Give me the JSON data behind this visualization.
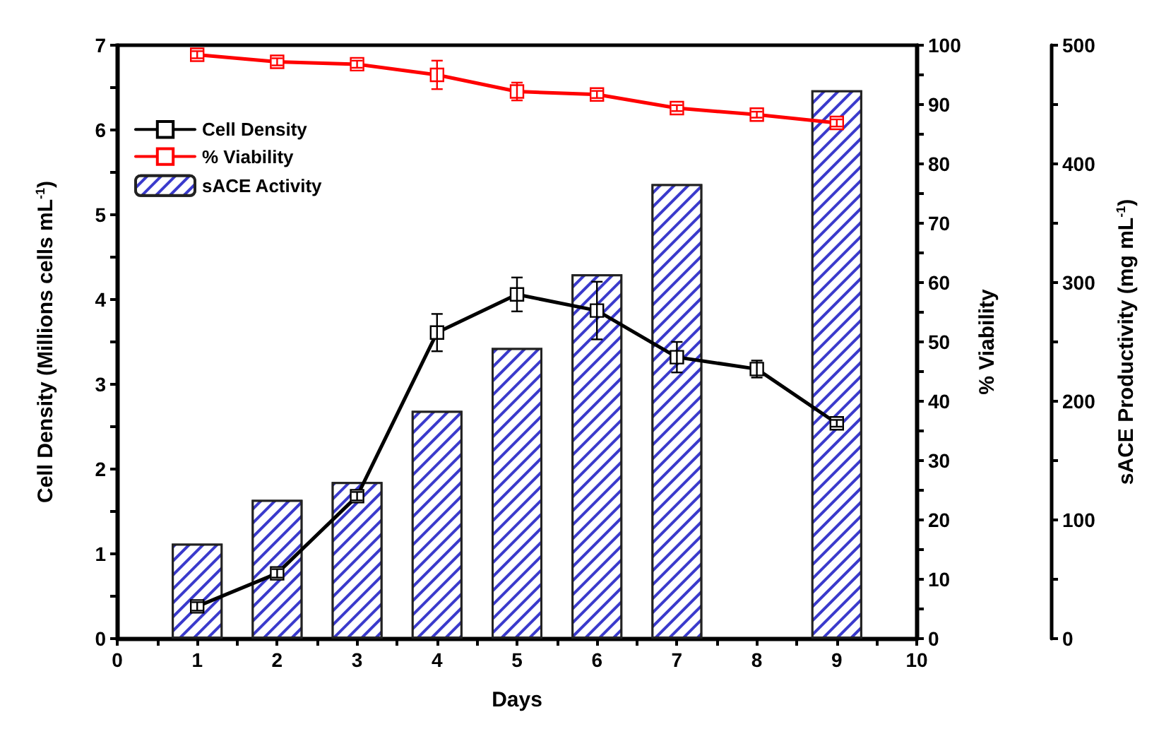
{
  "chart_data": {
    "type": "line",
    "xlabel": "Days",
    "ylabel": "Cell Density (Millions cells mL$^{-1}$)",
    "y2label": "% Viability",
    "y3label": "sACE Productivity (mg mL$^{-1}$)",
    "x": [
      1,
      2,
      3,
      4,
      5,
      6,
      7,
      8,
      9
    ],
    "series": [
      {
        "name": "Cell Density",
        "color": "#000000",
        "values": [
          0.38,
          0.77,
          1.68,
          3.61,
          4.06,
          3.87,
          3.32,
          3.18,
          2.54
        ],
        "errors": [
          0.05,
          0.05,
          0.05,
          0.22,
          0.2,
          0.34,
          0.18,
          0.1,
          0.04
        ]
      },
      {
        "name": "% Viability",
        "color": "#ff0000",
        "axis": "y2",
        "values": [
          98.4,
          97.2,
          96.8,
          95,
          92.2,
          91.7,
          89.4,
          88.3,
          86.9
        ],
        "errors": [
          0.6,
          0.6,
          0.6,
          2.4,
          1.5,
          0.6,
          0.5,
          0.5,
          0.6
        ]
      },
      {
        "name": "sACE Activity",
        "type": "bar",
        "color": "#3a3acc",
        "axis": "y3",
        "values": [
          80,
          117,
          132,
          192,
          245,
          307,
          383,
          null,
          462
        ]
      }
    ],
    "xlim": [
      0,
      10
    ],
    "xticks": [
      0,
      {
        "value": 0.5,
        "label": null
      },
      1,
      {
        "value": 1.5,
        "label": null
      },
      2,
      {
        "value": 2.5,
        "label": null
      },
      3,
      {
        "value": 3.5,
        "label": null
      },
      4,
      {
        "value": 4.5,
        "label": null
      },
      5,
      {
        "value": 5.5,
        "label": null
      },
      6,
      {
        "value": 6.5,
        "label": null
      },
      7,
      {
        "value": 7.5,
        "label": null
      },
      8,
      {
        "value": 8.5,
        "label": null
      },
      9,
      {
        "value": 9.5,
        "label": null
      },
      10
    ],
    "ylim": [
      0,
      7
    ],
    "yticks": [
      0,
      {
        "value": 0.5,
        "label": null
      },
      1,
      {
        "value": 1.5,
        "label": null
      },
      2,
      {
        "value": 2.5,
        "label": null
      },
      3,
      {
        "value": 3.5,
        "label": null
      },
      4,
      {
        "value": 4.5,
        "label": null
      },
      5,
      {
        "value": 5.5,
        "label": null
      },
      6,
      {
        "value": 6.5,
        "label": null
      },
      7
    ],
    "y2lim": [
      0,
      100
    ],
    "y2ticks": [
      0,
      {
        "value": 5,
        "label": null
      },
      10,
      {
        "value": 15,
        "label": null
      },
      20,
      {
        "value": 25,
        "label": null
      },
      30,
      {
        "value": 35,
        "label": null
      },
      40,
      {
        "value": 45,
        "label": null
      },
      50,
      {
        "value": 55,
        "label": null
      },
      60,
      {
        "value": 65,
        "label": null
      },
      70,
      {
        "value": 75,
        "label": null
      },
      80,
      {
        "value": 85,
        "label": null
      },
      90,
      {
        "value": 95,
        "label": null
      },
      100
    ],
    "y3lim": [
      0,
      500
    ],
    "y3ticks": [
      0,
      {
        "value": 50,
        "label": null
      },
      100,
      {
        "value": 150,
        "label": null
      },
      200,
      {
        "value": 250,
        "label": null
      },
      300,
      {
        "value": 350,
        "label": null
      },
      400,
      {
        "value": 450,
        "label": null
      },
      500
    ],
    "marker": "square",
    "line_style": "solid",
    "grid": false,
    "legend": "top left"
  }
}
